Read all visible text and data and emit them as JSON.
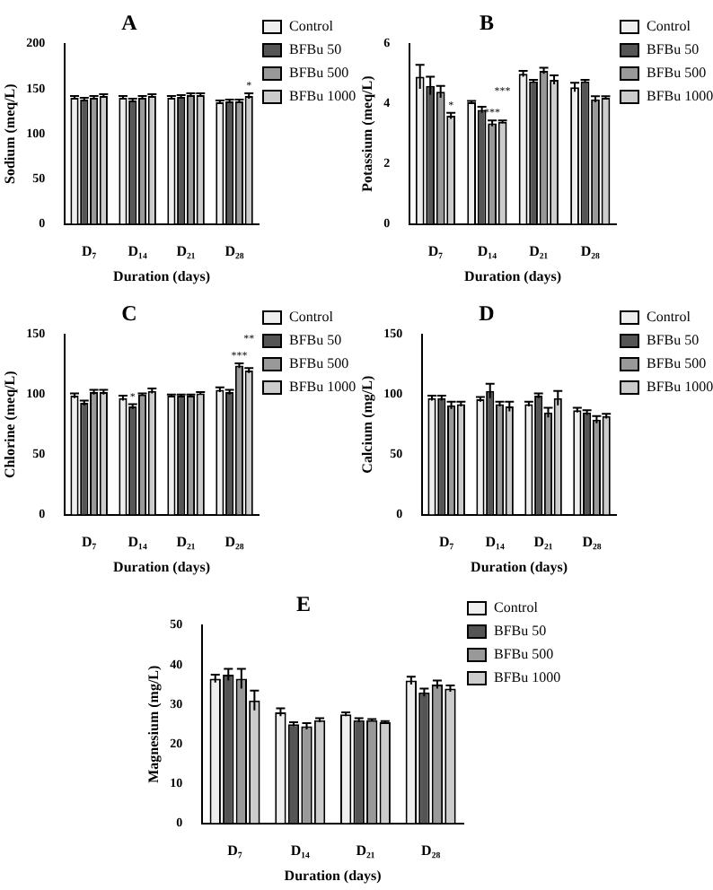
{
  "chart_data": [
    {
      "type": "bar",
      "title": "A",
      "xlabel": "Duration (days)",
      "ylabel": "Sodium (meq/L)",
      "categories": [
        "D₇",
        "D₁₄",
        "D₂₁",
        "D₂₈"
      ],
      "ylim": [
        0,
        200
      ],
      "yticks": [
        0,
        50,
        100,
        150,
        200
      ],
      "grid": false,
      "legend": "right",
      "series": [
        {
          "name": "Control",
          "color": "#eeeeee",
          "values": [
            140,
            140,
            140,
            135
          ],
          "errors": [
            2,
            2,
            2,
            2
          ]
        },
        {
          "name": "BFBu 50",
          "color": "#555555",
          "values": [
            138,
            137,
            141,
            136
          ],
          "errors": [
            2,
            2,
            2,
            2
          ]
        },
        {
          "name": "BFBu 500",
          "color": "#999999",
          "values": [
            140,
            140,
            143,
            136
          ],
          "errors": [
            2,
            2,
            2,
            2
          ]
        },
        {
          "name": "BFBu 1000",
          "color": "#cccccc",
          "values": [
            142,
            142,
            143,
            142
          ],
          "errors": [
            2,
            2,
            2,
            3
          ],
          "value_labels": [
            null,
            null,
            null,
            "*"
          ]
        }
      ]
    },
    {
      "type": "bar",
      "title": "B",
      "xlabel": "Duration (days)",
      "ylabel": "Potassium (meq/L)",
      "categories": [
        "D₇",
        "D₁₄",
        "D₂₁",
        "D₂₈"
      ],
      "ylim": [
        0,
        6
      ],
      "yticks": [
        0,
        2,
        4,
        6
      ],
      "grid": false,
      "legend": "right",
      "series": [
        {
          "name": "Control",
          "color": "#eeeeee",
          "values": [
            4.9,
            4.05,
            5.0,
            4.55
          ],
          "errors": [
            0.4,
            0.05,
            0.1,
            0.15
          ]
        },
        {
          "name": "BFBu 50",
          "color": "#555555",
          "values": [
            4.6,
            3.8,
            4.75,
            4.75
          ],
          "errors": [
            0.3,
            0.1,
            0.05,
            0.05
          ]
        },
        {
          "name": "BFBu 500",
          "color": "#999999",
          "values": [
            4.4,
            3.35,
            5.1,
            4.15
          ],
          "errors": [
            0.2,
            0.1,
            0.1,
            0.1
          ],
          "value_labels": [
            null,
            "***",
            null,
            null
          ]
        },
        {
          "name": "BFBu 1000",
          "color": "#cccccc",
          "values": [
            3.6,
            3.4,
            4.8,
            4.2
          ],
          "errors": [
            0.1,
            0.05,
            0.15,
            0.05
          ],
          "value_labels": [
            "*",
            "***",
            null,
            null
          ]
        }
      ]
    },
    {
      "type": "bar",
      "title": "C",
      "xlabel": "Duration (days)",
      "ylabel": "Chlorine (meq/L)",
      "categories": [
        "D₇",
        "D₁₄",
        "D₂₁",
        "D₂₈"
      ],
      "ylim": [
        0,
        150
      ],
      "yticks": [
        0,
        50,
        100,
        150
      ],
      "grid": false,
      "legend": "right",
      "series": [
        {
          "name": "Control",
          "color": "#eeeeee",
          "values": [
            99,
            97,
            99,
            104
          ],
          "errors": [
            2,
            2,
            1,
            2
          ]
        },
        {
          "name": "BFBu 50",
          "color": "#555555",
          "values": [
            93,
            90,
            99,
            102
          ],
          "errors": [
            2,
            2,
            1,
            2
          ],
          "value_labels": [
            null,
            "*",
            null,
            null
          ]
        },
        {
          "name": "BFBu 500",
          "color": "#999999",
          "values": [
            102,
            100,
            99,
            124
          ],
          "errors": [
            2,
            1,
            1,
            2
          ],
          "value_labels": [
            null,
            null,
            null,
            "***"
          ]
        },
        {
          "name": "BFBu 1000",
          "color": "#cccccc",
          "values": [
            102,
            103,
            101,
            120
          ],
          "errors": [
            2,
            2,
            1,
            2
          ],
          "value_labels": [
            null,
            null,
            null,
            "**"
          ]
        }
      ]
    },
    {
      "type": "bar",
      "title": "D",
      "xlabel": "Duration (days)",
      "ylabel": "Calcium (mg/L)",
      "categories": [
        "D₇",
        "D₁₄",
        "D₂₁",
        "D₂₈"
      ],
      "ylim": [
        0,
        150
      ],
      "yticks": [
        0,
        50,
        100,
        150
      ],
      "grid": false,
      "legend": "right",
      "series": [
        {
          "name": "Control",
          "color": "#eeeeee",
          "values": [
            97,
            96,
            92,
            87
          ],
          "errors": [
            2,
            2,
            2,
            2
          ]
        },
        {
          "name": "BFBu 50",
          "color": "#555555",
          "values": [
            97,
            103,
            99,
            85
          ],
          "errors": [
            2,
            6,
            2,
            2
          ]
        },
        {
          "name": "BFBu 500",
          "color": "#999999",
          "values": [
            91,
            92,
            85,
            79
          ],
          "errors": [
            3,
            2,
            4,
            3
          ]
        },
        {
          "name": "BFBu 1000",
          "color": "#cccccc",
          "values": [
            92,
            90,
            97,
            82
          ],
          "errors": [
            2,
            4,
            6,
            2
          ]
        }
      ]
    },
    {
      "type": "bar",
      "title": "E",
      "xlabel": "Duration (days)",
      "ylabel": "Magnesium (mg/L)",
      "categories": [
        "D₇",
        "D₁₄",
        "D₂₁",
        "D₂₈"
      ],
      "ylim": [
        0,
        50
      ],
      "yticks": [
        0,
        10,
        20,
        30,
        40,
        50
      ],
      "grid": false,
      "legend": "right",
      "series": [
        {
          "name": "Control",
          "color": "#eeeeee",
          "values": [
            36.5,
            28,
            27.5,
            36
          ],
          "errors": [
            1,
            1,
            0.5,
            1
          ]
        },
        {
          "name": "BFBu 50",
          "color": "#555555",
          "values": [
            37.5,
            25,
            26,
            33
          ],
          "errors": [
            1.5,
            0.5,
            0.5,
            1
          ]
        },
        {
          "name": "BFBu 500",
          "color": "#999999",
          "values": [
            36.5,
            24.5,
            26,
            35
          ],
          "errors": [
            2.5,
            0.8,
            0.3,
            1
          ]
        },
        {
          "name": "BFBu 1000",
          "color": "#cccccc",
          "values": [
            31,
            26,
            25.5,
            34
          ],
          "errors": [
            2.5,
            0.5,
            0.3,
            0.8
          ]
        }
      ]
    }
  ]
}
